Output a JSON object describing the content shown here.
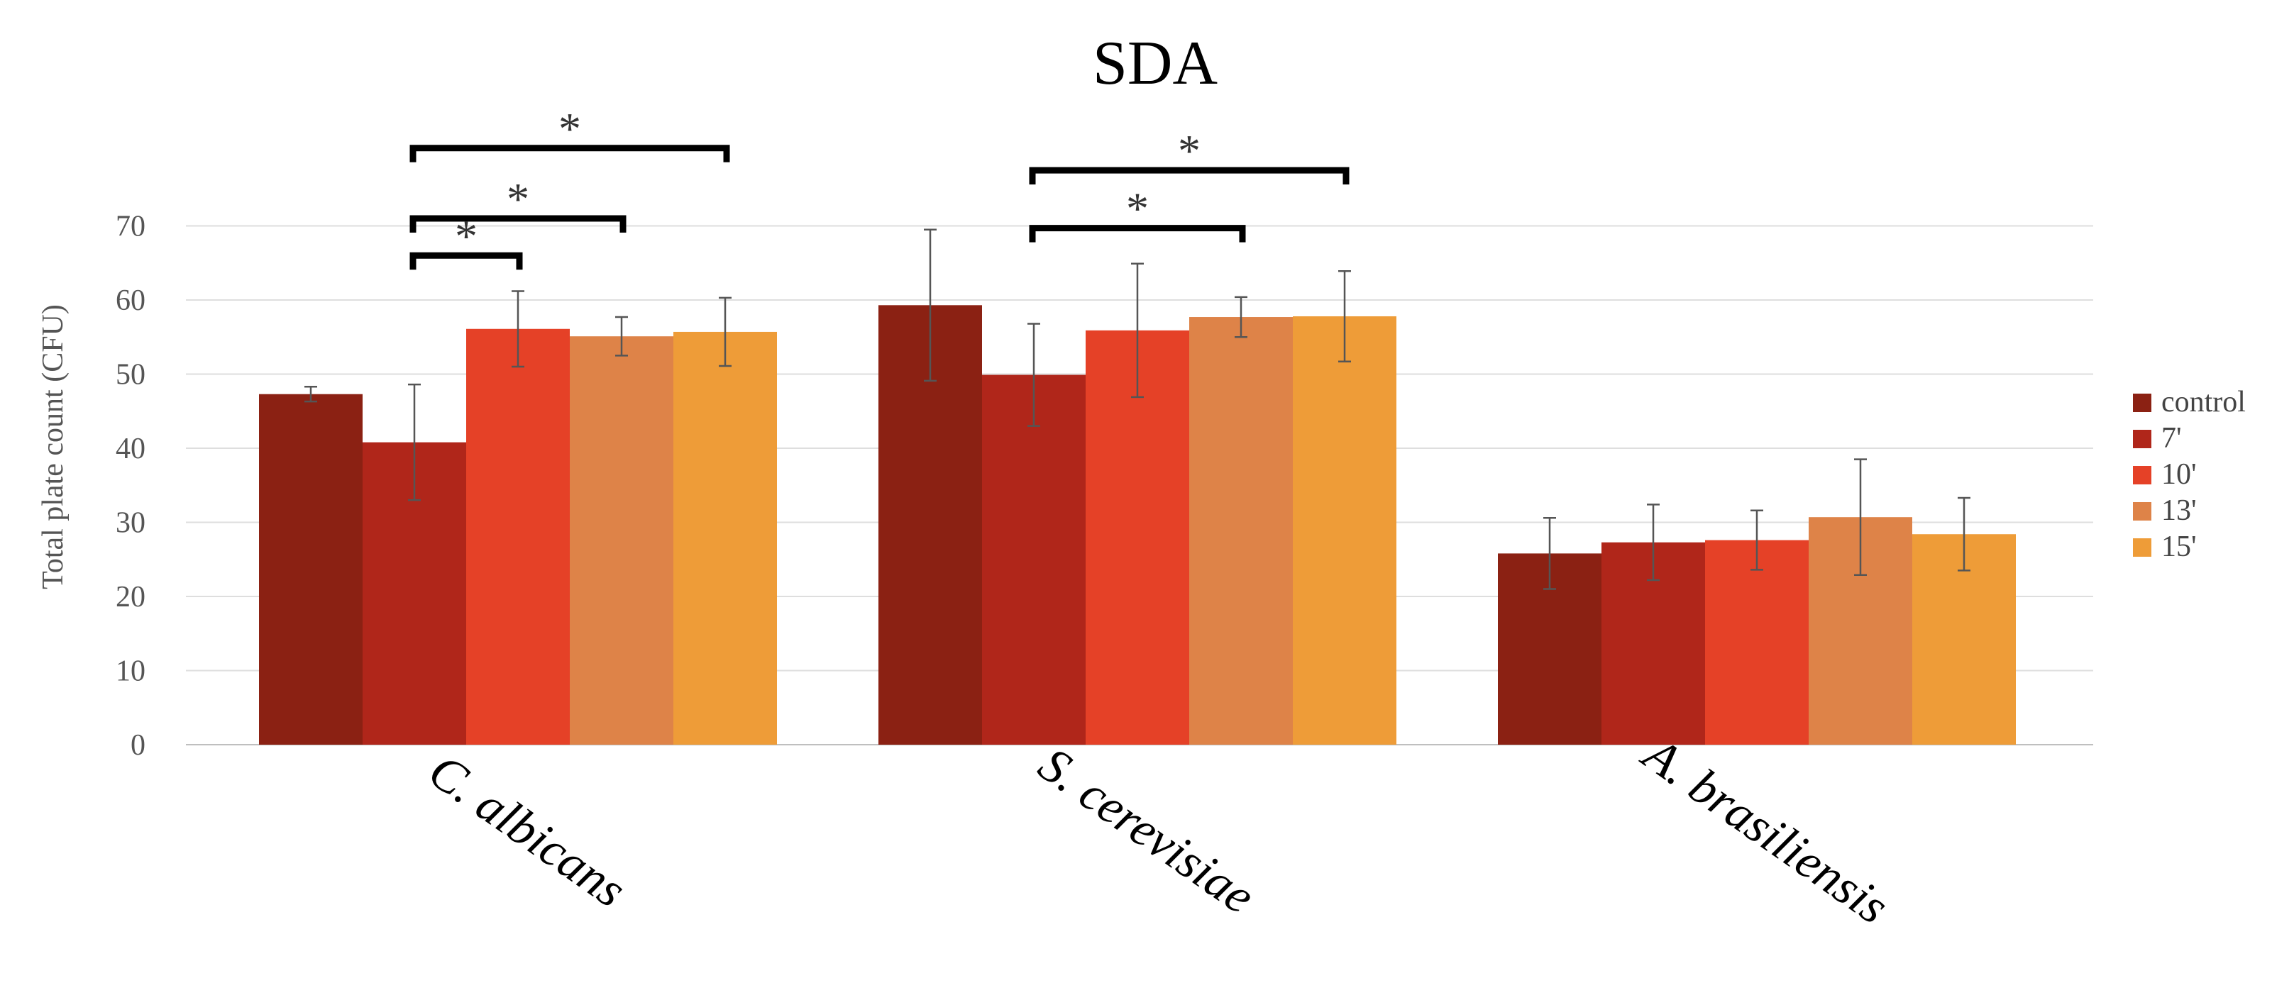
{
  "chart_data": {
    "type": "bar",
    "title": "SDA",
    "ylabel": "Total plate count (CFU)",
    "xlabel": "",
    "ylim": [
      0,
      70
    ],
    "yticks": [
      0,
      10,
      20,
      30,
      40,
      50,
      60,
      70
    ],
    "grid": true,
    "legend_position": "right",
    "categories": [
      "C. albicans",
      "S. cerevisiae",
      "A. brasiliensis"
    ],
    "series": [
      {
        "name": "control",
        "color": "#8B2113",
        "values": [
          47.3,
          59.3,
          25.8
        ],
        "errors": [
          1.0,
          10.2,
          4.8
        ]
      },
      {
        "name": "7'",
        "color": "#B0261A",
        "values": [
          40.8,
          49.9,
          27.3
        ],
        "errors": [
          7.8,
          6.9,
          5.1
        ]
      },
      {
        "name": "10'",
        "color": "#E54127",
        "values": [
          56.1,
          55.9,
          27.6
        ],
        "errors": [
          5.1,
          9.0,
          4.0
        ]
      },
      {
        "name": "13'",
        "color": "#DE8348",
        "values": [
          55.1,
          57.7,
          30.7
        ],
        "errors": [
          2.6,
          2.7,
          7.8
        ]
      },
      {
        "name": "15'",
        "color": "#EE9C38",
        "values": [
          55.7,
          57.8,
          28.4
        ],
        "errors": [
          4.6,
          6.1,
          4.9
        ]
      }
    ],
    "annotations": [
      {
        "category": 0,
        "from_series": 1,
        "to_series": 2,
        "y": 66,
        "label": "*"
      },
      {
        "category": 0,
        "from_series": 1,
        "to_series": 3,
        "y": 71,
        "label": "*"
      },
      {
        "category": 0,
        "from_series": 1,
        "to_series": 4,
        "y": 80.5,
        "label": "*"
      },
      {
        "category": 1,
        "from_series": 1,
        "to_series": 3,
        "y": 69.7,
        "label": "*"
      },
      {
        "category": 1,
        "from_series": 1,
        "to_series": 4,
        "y": 77.5,
        "label": "*"
      }
    ]
  }
}
